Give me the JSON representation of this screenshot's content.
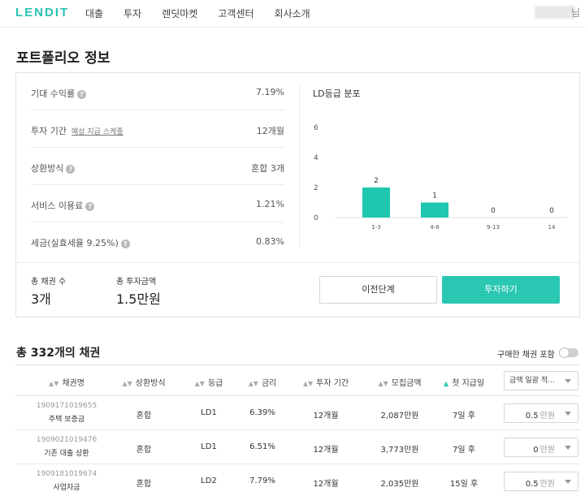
{
  "nav": {
    "logo": "LENDIT",
    "links": [
      "대출",
      "투자",
      "렌딧마켓",
      "고객센터",
      "회사소개"
    ],
    "user_suffix": "님"
  },
  "page_title": "포트폴리오 정보",
  "portfolio": {
    "rows": [
      {
        "label": "기대 수익률",
        "link": "",
        "help": true,
        "value": "7.19%"
      },
      {
        "label": "투자 기간",
        "link": "예상 지급 스케줄",
        "help": false,
        "value": "12개월"
      },
      {
        "label": "상환방식",
        "link": "",
        "help": true,
        "value": "혼합 3개"
      },
      {
        "label": "서비스 이용료",
        "link": "",
        "help": true,
        "value": "1.21%"
      },
      {
        "label": "세금(실효세율 9.25%)",
        "link": "",
        "help": true,
        "value": "0.83%"
      }
    ],
    "help_glyph": "?",
    "summary": {
      "count_label": "총 채권 수",
      "count_value": "3개",
      "amount_label": "총 투자금액",
      "amount_value": "1.5만원"
    },
    "prev_button": "이전단계",
    "invest_button": "투자하기"
  },
  "chart_data": {
    "type": "bar",
    "title": "LD등급 분포",
    "categories": [
      "1-3",
      "4-8",
      "9-13",
      "14"
    ],
    "values": [
      2,
      1,
      0,
      0
    ],
    "yticks": [
      0,
      2,
      4,
      6
    ],
    "ylim": [
      0,
      6
    ],
    "bar_color": "#1fc6b0",
    "grid": false
  },
  "bonds": {
    "title": "총 332개의 채권",
    "toggle_label": "구매한 채권 포함",
    "columns": [
      "채권명",
      "상환방식",
      "등급",
      "금리",
      "투자 기간",
      "모집금액",
      "첫 지급일"
    ],
    "bulk_select_label": "금액 일괄 적...",
    "accent_color": "#2ac7b3",
    "rows": [
      {
        "id": "1909171019655",
        "name": "주택 보증금",
        "repay": "혼합",
        "grade": "LD1",
        "rate": "6.39%",
        "term": "12개월",
        "raised": "2,087만원",
        "first_pay": "7일 후",
        "amount": "0.5",
        "unit": "만원"
      },
      {
        "id": "1909021019476",
        "name": "기존 대출 상환",
        "repay": "혼합",
        "grade": "LD1",
        "rate": "6.51%",
        "term": "12개월",
        "raised": "3,773만원",
        "first_pay": "7일 후",
        "amount": "0",
        "unit": "만원"
      },
      {
        "id": "1909181019674",
        "name": "사업자금",
        "repay": "혼합",
        "grade": "LD2",
        "rate": "7.79%",
        "term": "12개월",
        "raised": "2,035만원",
        "first_pay": "15일 후",
        "amount": "0.5",
        "unit": "만원"
      }
    ]
  }
}
